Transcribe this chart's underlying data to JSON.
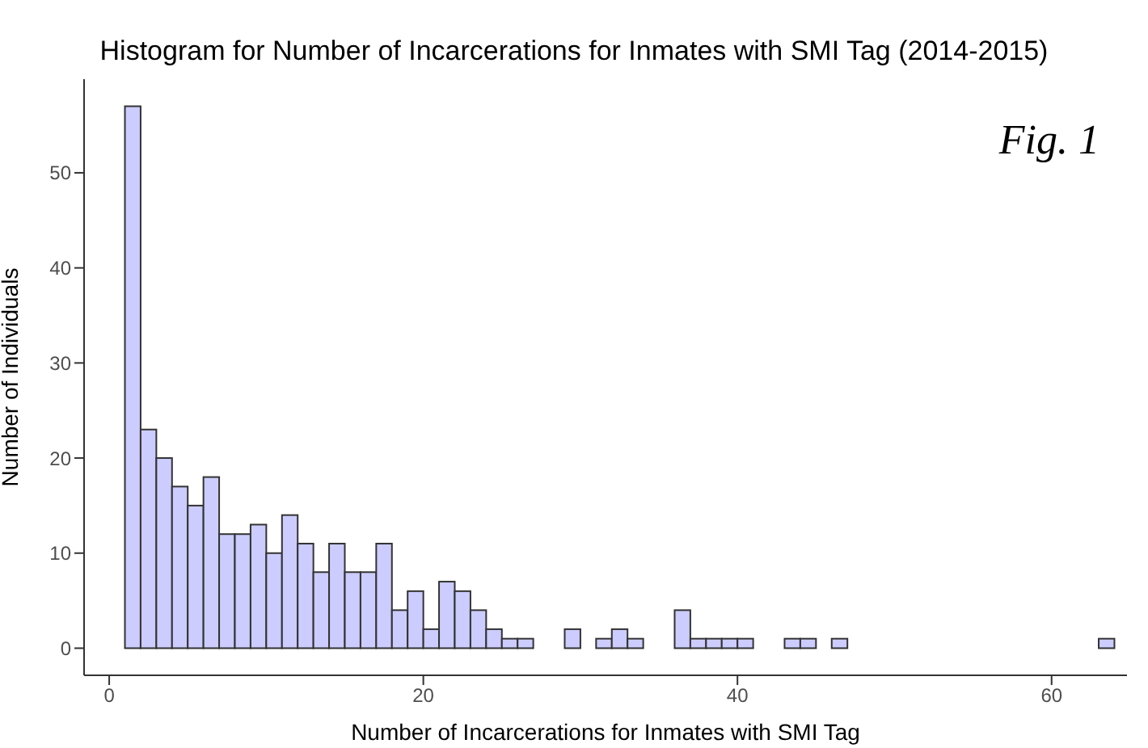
{
  "chart_data": {
    "type": "histogram",
    "title": "Histogram for Number of Incarcerations for Inmates with SMI Tag (2014-2015)",
    "xlabel": "Number of Incarcerations for Inmates with SMI Tag",
    "ylabel": "Number of Individuals",
    "annotations": [
      "Fig. 1"
    ],
    "bins": [
      1,
      2,
      3,
      4,
      5,
      6,
      7,
      8,
      9,
      10,
      11,
      12,
      13,
      14,
      15,
      16,
      17,
      18,
      19,
      20,
      21,
      22,
      23,
      24,
      25,
      26,
      27,
      28,
      29,
      30,
      31,
      32,
      33,
      34,
      35,
      36,
      37,
      38,
      39,
      40,
      41,
      42,
      43,
      44,
      45,
      46,
      47,
      48,
      49,
      50,
      51,
      52,
      53,
      54,
      55,
      56,
      57,
      58,
      59,
      60,
      61,
      62,
      63,
      64
    ],
    "values": [
      57,
      23,
      20,
      17,
      15,
      18,
      12,
      12,
      13,
      10,
      14,
      11,
      8,
      11,
      8,
      8,
      11,
      4,
      6,
      2,
      7,
      6,
      4,
      2,
      1,
      1,
      0,
      0,
      2,
      0,
      1,
      2,
      1,
      0,
      0,
      4,
      1,
      1,
      1,
      1,
      0,
      0,
      1,
      1,
      0,
      1,
      0,
      0,
      0,
      0,
      0,
      0,
      0,
      0,
      0,
      0,
      0,
      0,
      0,
      0,
      0,
      0,
      1
    ],
    "color": "#ccccff",
    "xlim": [
      -1.6,
      64.8
    ],
    "xticks": [
      0,
      20,
      40,
      60
    ],
    "ylim": [
      -2.85,
      59.85
    ],
    "yticks": [
      0,
      10,
      20,
      30,
      40,
      50
    ],
    "grid": false,
    "legend": false
  }
}
